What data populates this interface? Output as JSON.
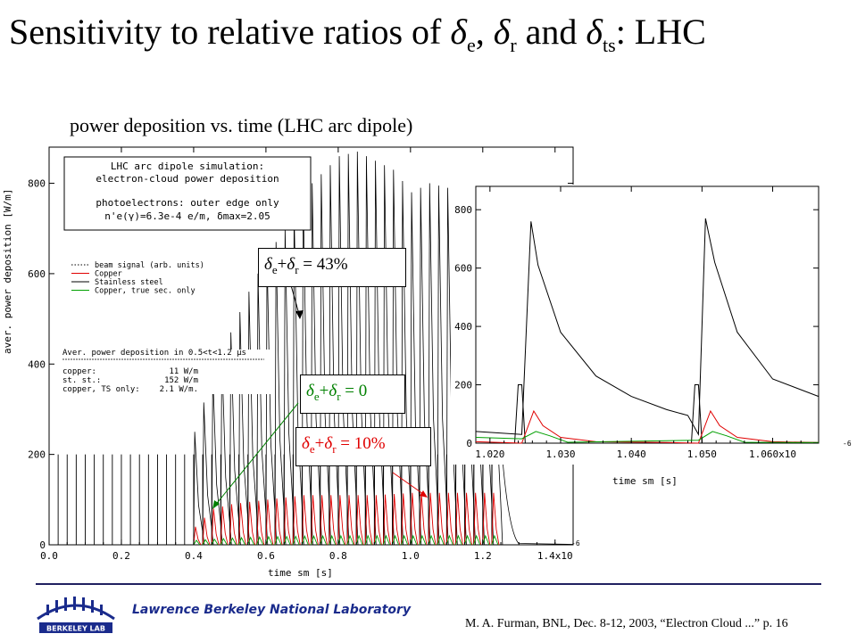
{
  "slide": {
    "title_main": "Sensitivity to relative ratios of ",
    "title_delta": "δ",
    "title_sub_e": "e",
    "title_sep1": ", ",
    "title_sub_r": "r",
    "title_sep2": " and ",
    "title_sub_ts": "ts",
    "title_end": ": LHC",
    "subtitle": "power deposition vs. time (LHC arc dipole)"
  },
  "info_box": {
    "line1": "LHC arc dipole simulation:",
    "line2": "electron-cloud power deposition",
    "line3": "photoelectrons: outer edge only",
    "line4": "n'e(γ)=6.3e-4 e/m, δmax=2.05"
  },
  "legend": {
    "items": [
      {
        "label": "beam signal (arb. units)",
        "color": "#000000",
        "style": "dotted"
      },
      {
        "label": "Copper",
        "color": "#e00000",
        "style": "solid"
      },
      {
        "label": "Stainless steel",
        "color": "#000000",
        "style": "solid"
      },
      {
        "label": "Copper, true sec. only",
        "color": "#00a000",
        "style": "solid"
      }
    ]
  },
  "averages": {
    "title": "Aver. power deposition in 0.5<t<1.2  μs",
    "rows": [
      {
        "name": "copper:",
        "value": "11 W/m"
      },
      {
        "name": "st. st.:",
        "value": "152 W/m"
      },
      {
        "name": "copper, TS only:",
        "value": "2.1 W/m."
      }
    ]
  },
  "callouts": {
    "delta": "δ",
    "e": "e",
    "r": "r",
    "plus": "+",
    "c43": " = 43%",
    "c0": " = 0",
    "c10": " = 10%"
  },
  "chart_data": [
    {
      "type": "line",
      "xlabel": "time sm [s]",
      "ylabel": "aver. power deposition [W/m]",
      "xlim": [
        0.0,
        1.45
      ],
      "ylim": [
        0,
        880
      ],
      "x_ticks": [
        "0.0",
        "0.2",
        "0.4",
        "0.6",
        "0.8",
        "1.0",
        "1.2",
        "1.4x10"
      ],
      "x_tick_exponent": "-6",
      "y_ticks": [
        "0",
        "200",
        "400",
        "600",
        "800"
      ],
      "x_tick_values": [
        0.0,
        0.2,
        0.4,
        0.6,
        0.8,
        1.0,
        1.2,
        1.4
      ],
      "y_tick_values": [
        0,
        200,
        400,
        600,
        800
      ],
      "bunch_train": {
        "first_bunch": 0.0,
        "spacing": 0.025,
        "last_bunch": 1.225
      },
      "series": [
        {
          "name": "beam signal (arb. units)",
          "color": "#000000",
          "note_values": "peak height per bunch ~ 200 W/m scale"
        },
        {
          "name": "Stainless steel",
          "color": "#000000",
          "x": [
            0.4,
            0.45,
            0.5,
            0.55,
            0.6,
            0.65,
            0.7,
            0.75,
            0.8,
            0.85,
            0.9,
            0.95,
            1.0,
            1.05,
            1.1,
            1.15,
            1.2,
            1.225
          ],
          "y": [
            250,
            380,
            470,
            560,
            640,
            700,
            780,
            820,
            860,
            870,
            850,
            830,
            780,
            800,
            790,
            780,
            770,
            780
          ]
        },
        {
          "name": "Copper",
          "color": "#e00000",
          "x": [
            0.4,
            0.45,
            0.5,
            0.6,
            0.7,
            0.8,
            0.9,
            1.0,
            1.1,
            1.2,
            1.225
          ],
          "y": [
            40,
            80,
            90,
            100,
            110,
            110,
            110,
            115,
            115,
            115,
            115
          ]
        },
        {
          "name": "Copper, true sec. only",
          "color": "#00a000",
          "x": [
            0.4,
            0.5,
            0.6,
            0.8,
            1.0,
            1.225
          ],
          "y": [
            10,
            15,
            18,
            20,
            20,
            20
          ]
        }
      ]
    },
    {
      "type": "line",
      "xlabel": "time sm [s]",
      "xlim": [
        1.018,
        1.0665
      ],
      "ylim": [
        0,
        880
      ],
      "x_ticks": [
        "1.020",
        "1.030",
        "1.040",
        "1.050",
        "1.060x10"
      ],
      "x_tick_exponent": "-6",
      "y_ticks": [
        "0",
        "200",
        "400",
        "600",
        "800"
      ],
      "x_tick_values": [
        1.02,
        1.03,
        1.04,
        1.05,
        1.06
      ],
      "y_tick_values": [
        0,
        200,
        400,
        600,
        800
      ],
      "series": [
        {
          "name": "beam signal (arb. units)",
          "color": "#000000",
          "x": [
            1.0235,
            1.024,
            1.0245,
            1.025,
            1.0485,
            1.049,
            1.0495,
            1.05
          ],
          "y": [
            0,
            200,
            200,
            0,
            0,
            200,
            200,
            0
          ]
        },
        {
          "name": "Stainless steel",
          "color": "#000000",
          "x": [
            1.018,
            1.0245,
            1.0258,
            1.0268,
            1.03,
            1.035,
            1.04,
            1.045,
            1.048,
            1.0495,
            1.0505,
            1.0518,
            1.055,
            1.06,
            1.0665
          ],
          "y": [
            40,
            30,
            760,
            610,
            380,
            230,
            160,
            115,
            95,
            30,
            770,
            620,
            380,
            220,
            160
          ]
        },
        {
          "name": "Copper",
          "color": "#e00000",
          "x": [
            1.018,
            1.0245,
            1.0262,
            1.0275,
            1.03,
            1.035,
            1.045,
            1.0495,
            1.0512,
            1.0525,
            1.055,
            1.06,
            1.0665
          ],
          "y": [
            5,
            0,
            110,
            60,
            20,
            5,
            2,
            0,
            110,
            60,
            20,
            5,
            2
          ]
        },
        {
          "name": "Copper, true sec. only",
          "color": "#00a000",
          "x": [
            1.018,
            1.0245,
            1.0265,
            1.0285,
            1.031,
            1.0495,
            1.0515,
            1.0535,
            1.056,
            1.0665
          ],
          "y": [
            20,
            15,
            40,
            25,
            3,
            10,
            40,
            25,
            3,
            2
          ]
        }
      ]
    }
  ],
  "footer": {
    "lab": "Lawrence Berkeley National Laboratory",
    "credit": "M. A. Furman, BNL, Dec. 8-12, 2003, “Electron Cloud ...”  p. 16",
    "logo_text": "BERKELEY LAB"
  }
}
